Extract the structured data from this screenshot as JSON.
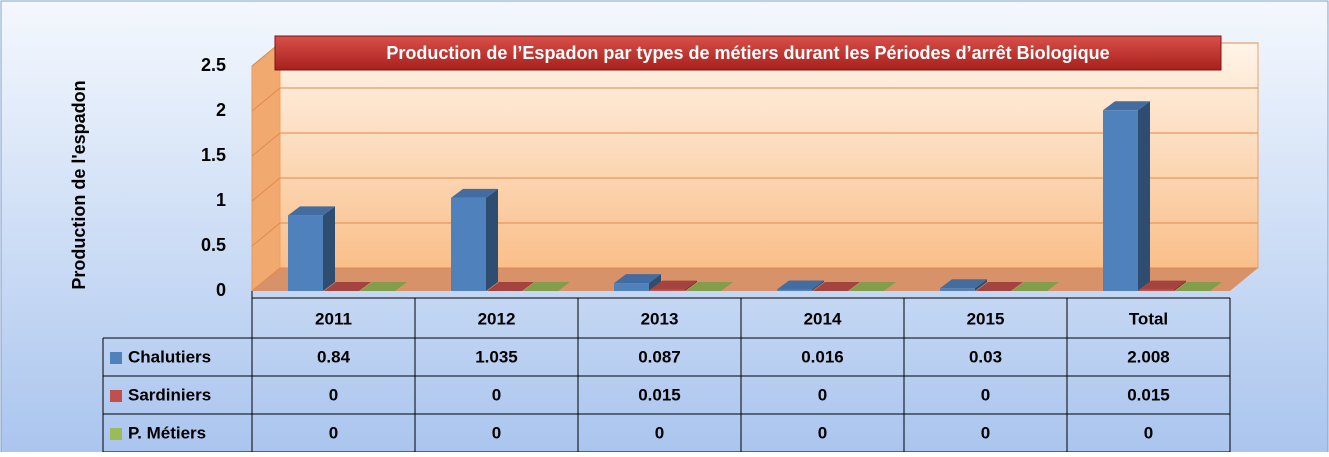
{
  "chart_data": {
    "type": "bar",
    "title": "Production de l’Espadon par types de métiers durant les Périodes d’arrêt Biologique",
    "y_label": "Production de l'espadon",
    "categories": [
      "2011",
      "2012",
      "2013",
      "2014",
      "2015",
      "Total"
    ],
    "series": [
      {
        "name": "Chalutiers",
        "color": "#4f81bd",
        "values": [
          0.84,
          1.035,
          0.087,
          0.016,
          0.03,
          2.008
        ]
      },
      {
        "name": "Sardiniers",
        "color": "#c0504d",
        "values": [
          0,
          0,
          0.015,
          0,
          0,
          0.015
        ]
      },
      {
        "name": "P. Métiers",
        "color": "#9bbb59",
        "values": [
          0,
          0,
          0,
          0,
          0,
          0
        ]
      }
    ],
    "ylim": [
      0,
      2.5
    ],
    "yticks": [
      0,
      0.5,
      1,
      1.5,
      2,
      2.5
    ],
    "grid": true
  }
}
